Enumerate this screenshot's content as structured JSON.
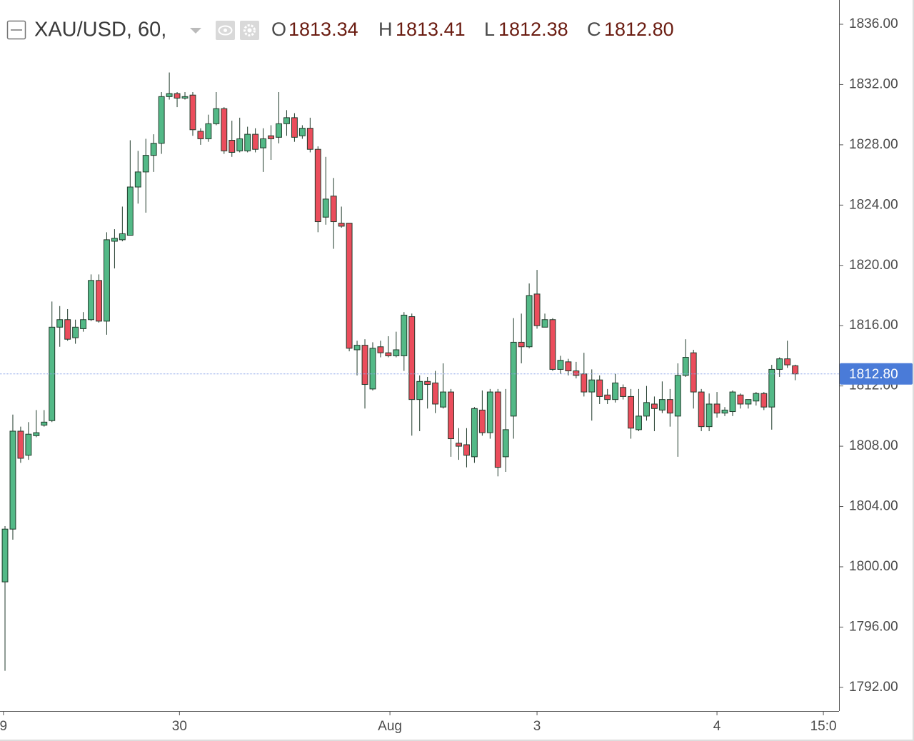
{
  "chart_data": {
    "type": "candlestick",
    "symbol": "XAU/USD, 60,",
    "ohlc_legend": {
      "labels": [
        "O",
        "H",
        "L",
        "C"
      ],
      "values": [
        "1813.34",
        "1813.41",
        "1812.38",
        "1812.80"
      ]
    },
    "up_color": "#53b987",
    "down_color": "#eb4d5c",
    "wick_color": "#1f3a2a",
    "xlim": [
      -0.64,
      106.6
    ],
    "xticks": [
      {
        "value": -0.2,
        "label": "9"
      },
      {
        "value": 22.3,
        "label": "30"
      },
      {
        "value": 49.2,
        "label": "Aug"
      },
      {
        "value": 68,
        "label": "3"
      },
      {
        "value": 91,
        "label": "4"
      },
      {
        "value": 104.6,
        "label": "15:0"
      }
    ],
    "ylim": [
      1790.43,
      1837.61
    ],
    "yticks": [
      {
        "value": 1792,
        "label": "1792.00"
      },
      {
        "value": 1796,
        "label": "1796.00"
      },
      {
        "value": 1800,
        "label": "1800.00"
      },
      {
        "value": 1804,
        "label": "1804.00"
      },
      {
        "value": 1808,
        "label": "1808.00"
      },
      {
        "value": 1812,
        "label": "1812.00"
      },
      {
        "value": 1816,
        "label": "1816.00"
      },
      {
        "value": 1820,
        "label": "1820.00"
      },
      {
        "value": 1824,
        "label": "1824.00"
      },
      {
        "value": 1828,
        "label": "1828.00"
      },
      {
        "value": 1832,
        "label": "1832.00"
      },
      {
        "value": 1836,
        "label": "1836.00"
      }
    ],
    "last_price": {
      "value": 1812.8,
      "label": "1812.80"
    },
    "open": [
      1799.0,
      1802.5,
      1809.0,
      1807.4,
      1808.7,
      1809.4,
      1809.7,
      1815.9,
      1816.4,
      1815.2,
      1815.8,
      1816.4,
      1819.0,
      1816.3,
      1821.6,
      1821.7,
      1822.0,
      1825.2,
      1826.2,
      1827.3,
      1828.1,
      1831.2,
      1831.4,
      1831.1,
      1831.3,
      1828.9,
      1828.4,
      1829.4,
      1830.4,
      1828.3,
      1827.6,
      1827.6,
      1828.7,
      1827.8,
      1828.6,
      1828.5,
      1829.4,
      1829.8,
      1828.6,
      1829.1,
      1827.7,
      1823.2,
      1824.6,
      1822.8,
      1822.8,
      1814.4,
      1814.7,
      1811.8,
      1814.6,
      1814.2,
      1814.0,
      1814.0,
      1816.6,
      1811.1,
      1812.3,
      1812.2,
      1810.6,
      1811.6,
      1808.2,
      1808.1,
      1807.3,
      1810.4,
      1808.9,
      1811.6,
      1807.3,
      1810.0,
      1814.9,
      1814.6,
      1818.1,
      1815.9,
      1816.4,
      1813.1,
      1813.6,
      1813.0,
      1812.8,
      1811.6,
      1812.4,
      1811.4,
      1811.1,
      1811.9,
      1811.3,
      1809.1,
      1810.0,
      1810.8,
      1810.4,
      1811.1,
      1810.0,
      1812.7,
      1814.2,
      1811.6,
      1809.3,
      1810.8,
      1810.2,
      1810.3,
      1811.4,
      1810.8,
      1811.0,
      1811.5,
      1810.6,
      1813.1,
      1813.8,
      1813.34
    ],
    "high": [
      1802.7,
      1810.1,
      1809.3,
      1809.6,
      1810.4,
      1810.4,
      1817.6,
      1817.3,
      1817.1,
      1816.4,
      1816.9,
      1819.4,
      1819.4,
      1822.2,
      1822.4,
      1823.9,
      1828.3,
      1827.6,
      1828.4,
      1828.7,
      1831.5,
      1832.8,
      1831.5,
      1831.5,
      1831.5,
      1829.1,
      1830.0,
      1831.5,
      1830.5,
      1829.6,
      1829.8,
      1829.2,
      1829.1,
      1829.1,
      1829.3,
      1831.5,
      1830.3,
      1830.1,
      1829.3,
      1829.8,
      1827.9,
      1827.2,
      1825.8,
      1823.9,
      1822.8,
      1815.0,
      1815.1,
      1814.9,
      1815.0,
      1815.3,
      1815.6,
      1816.9,
      1816.8,
      1812.7,
      1812.6,
      1813.0,
      1813.5,
      1811.8,
      1809.2,
      1809.2,
      1810.6,
      1811.7,
      1811.8,
      1811.8,
      1811.8,
      1816.5,
      1816.8,
      1818.8,
      1819.7,
      1816.8,
      1816.5,
      1814.0,
      1813.8,
      1813.6,
      1814.2,
      1813.1,
      1812.7,
      1811.8,
      1812.8,
      1812.1,
      1811.8,
      1811.8,
      1812.0,
      1811.3,
      1812.3,
      1811.8,
      1813.5,
      1815.1,
      1814.4,
      1811.8,
      1811.5,
      1811.6,
      1810.6,
      1811.7,
      1811.5,
      1811.1,
      1811.6,
      1811.6,
      1813.4,
      1813.9,
      1815.0,
      1813.41
    ],
    "low": [
      1793.1,
      1801.8,
      1806.9,
      1807.1,
      1808.6,
      1809.3,
      1809.6,
      1814.6,
      1815.0,
      1814.8,
      1815.6,
      1816.3,
      1816.2,
      1815.4,
      1819.8,
      1821.6,
      1822.0,
      1824.1,
      1823.5,
      1826.2,
      1827.4,
      1831.0,
      1830.5,
      1831.0,
      1828.6,
      1828.0,
      1828.2,
      1829.3,
      1827.4,
      1827.2,
      1827.5,
      1827.5,
      1827.5,
      1826.2,
      1827.0,
      1828.1,
      1828.6,
      1828.2,
      1828.4,
      1827.5,
      1822.2,
      1822.7,
      1821.1,
      1822.5,
      1814.3,
      1812.7,
      1810.5,
      1811.7,
      1813.9,
      1813.9,
      1813.9,
      1813.0,
      1808.7,
      1809.0,
      1810.5,
      1810.2,
      1810.5,
      1807.3,
      1807.1,
      1806.6,
      1806.9,
      1808.7,
      1808.5,
      1806.0,
      1806.3,
      1808.5,
      1813.5,
      1814.5,
      1815.8,
      1815.9,
      1813.0,
      1812.8,
      1812.7,
      1812.5,
      1811.3,
      1809.7,
      1810.8,
      1810.8,
      1810.9,
      1811.1,
      1808.5,
      1809.0,
      1809.7,
      1809.0,
      1810.2,
      1809.3,
      1807.3,
      1812.6,
      1810.5,
      1809.0,
      1809.0,
      1809.9,
      1810.0,
      1810.0,
      1810.5,
      1810.5,
      1810.7,
      1810.4,
      1809.1,
      1812.6,
      1813.2,
      1812.38
    ],
    "close": [
      1802.5,
      1809.0,
      1807.2,
      1808.8,
      1808.9,
      1809.6,
      1815.9,
      1816.4,
      1815.1,
      1815.9,
      1816.4,
      1819.0,
      1816.3,
      1821.7,
      1821.8,
      1822.1,
      1825.2,
      1826.2,
      1827.3,
      1828.1,
      1831.2,
      1831.4,
      1831.1,
      1831.2,
      1829.0,
      1828.4,
      1829.4,
      1830.4,
      1827.6,
      1827.5,
      1828.4,
      1828.7,
      1827.7,
      1828.4,
      1828.4,
      1829.4,
      1829.8,
      1828.5,
      1829.1,
      1827.7,
      1822.9,
      1824.4,
      1822.9,
      1822.6,
      1814.5,
      1814.7,
      1812.1,
      1814.5,
      1814.2,
      1814.0,
      1814.4,
      1816.7,
      1811.1,
      1812.3,
      1812.1,
      1810.8,
      1811.6,
      1808.5,
      1808.0,
      1807.4,
      1810.5,
      1808.9,
      1811.6,
      1806.6,
      1809.1,
      1814.9,
      1814.6,
      1818.0,
      1816.0,
      1816.4,
      1813.1,
      1813.7,
      1813.0,
      1812.7,
      1811.6,
      1812.4,
      1811.3,
      1811.1,
      1812.2,
      1811.3,
      1809.2,
      1810.0,
      1810.9,
      1810.5,
      1811.1,
      1810.2,
      1812.7,
      1813.9,
      1811.6,
      1809.3,
      1810.8,
      1810.2,
      1810.4,
      1811.6,
      1810.8,
      1811.1,
      1811.5,
      1810.6,
      1813.1,
      1813.8,
      1813.4,
      1812.8
    ]
  }
}
